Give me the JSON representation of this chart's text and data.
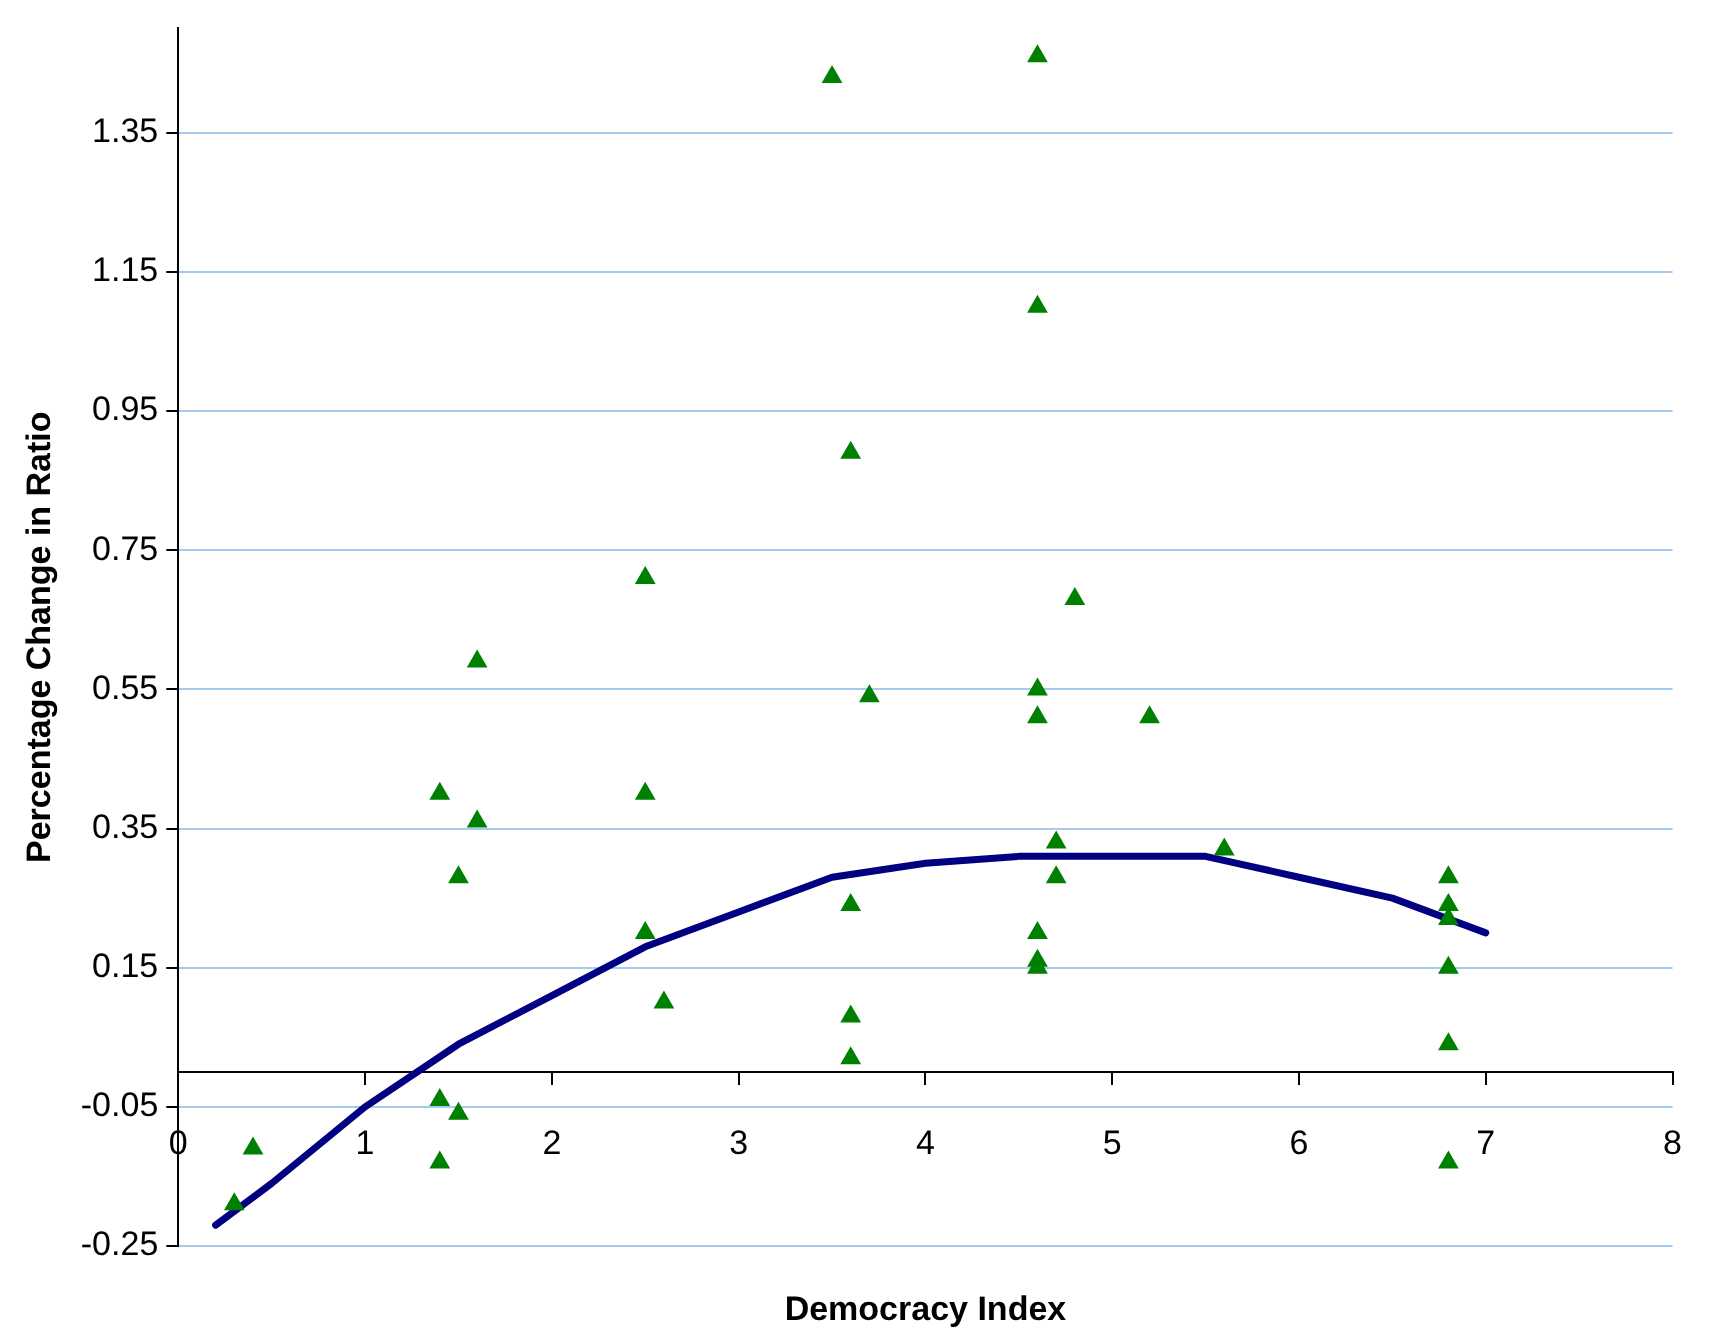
{
  "chart_data": {
    "type": "scatter",
    "xlabel": "Democracy Index",
    "ylabel": "Percentage Change in Ratio",
    "xlim": [
      0,
      8
    ],
    "xticks": [
      0,
      1,
      2,
      3,
      4,
      5,
      6,
      7,
      8
    ],
    "ylim": [
      -0.25,
      1.5
    ],
    "yticks": [
      -0.25,
      -0.05,
      0.15,
      0.35,
      0.55,
      0.75,
      0.95,
      1.15,
      1.35
    ],
    "grid": "y",
    "legend": false,
    "marker": "triangle",
    "series": [
      {
        "color": "#008000",
        "x": [
          0.3,
          0.4,
          1.4,
          1.4,
          1.5,
          1.4,
          1.5,
          1.6,
          1.6,
          2.5,
          2.5,
          2.5,
          2.6,
          3.5,
          3.6,
          3.7,
          3.6,
          3.6,
          3.6,
          4.6,
          4.6,
          4.8,
          4.6,
          4.6,
          5.2,
          4.7,
          4.7,
          4.6,
          4.6,
          4.6,
          5.6,
          6.8,
          6.8,
          6.8,
          6.8,
          6.8,
          6.8
        ],
        "values": [
          -0.19,
          -0.11,
          -0.04,
          -0.13,
          -0.06,
          0.4,
          0.28,
          0.59,
          0.36,
          0.71,
          0.4,
          0.2,
          0.1,
          1.43,
          0.89,
          0.54,
          0.24,
          0.08,
          0.02,
          1.46,
          1.1,
          0.68,
          0.55,
          0.51,
          0.51,
          0.33,
          0.28,
          0.2,
          0.16,
          0.15,
          0.32,
          0.28,
          0.24,
          0.22,
          0.15,
          0.04,
          -0.13
        ]
      },
      {
        "type": "line",
        "color": "#000080",
        "marker": "none",
        "x": [
          0.2,
          0.5,
          1,
          1.5,
          2,
          2.5,
          3,
          3.5,
          4,
          4.5,
          5,
          5.5,
          6,
          6.5,
          7
        ],
        "values": [
          -0.22,
          -0.16,
          -0.05,
          0.04,
          0.11,
          0.18,
          0.23,
          0.28,
          0.3,
          0.31,
          0.31,
          0.31,
          0.28,
          0.25,
          0.2
        ]
      }
    ]
  }
}
